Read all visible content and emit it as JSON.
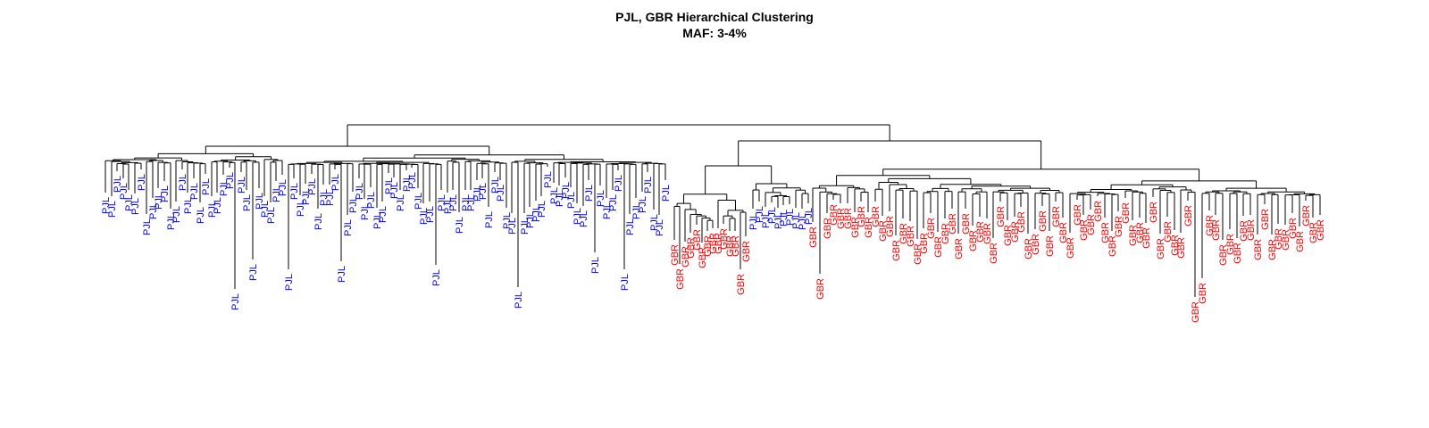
{
  "title": "PJL, GBR Hierarchical Clustering",
  "subtitle": "MAF: 3-4%",
  "colors": {
    "PJL": "#0000ff",
    "GBR": "#ff0000",
    "line": "#000000"
  },
  "dendrogram": {
    "groups": [
      {
        "name": "PJL",
        "count": 96
      },
      {
        "name": "GBR",
        "count": 88
      }
    ]
  }
}
